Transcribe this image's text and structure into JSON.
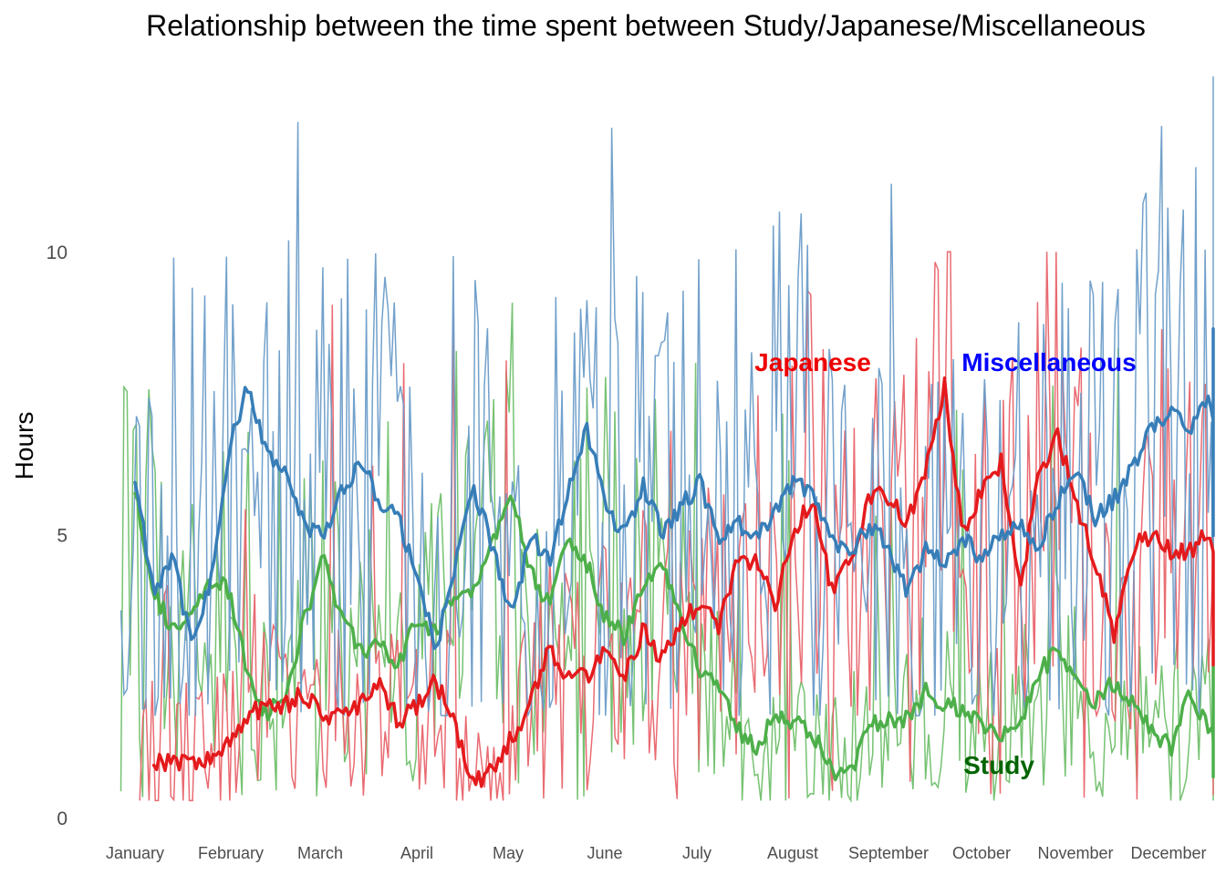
{
  "chart_data": {
    "type": "line",
    "title": "Relationship between the time spent between Study/Japanese/Miscellaneous",
    "ylabel": "Hours",
    "xlabel": "",
    "ylim": [
      0,
      13.0
    ],
    "yticks": [
      0,
      5,
      10
    ],
    "xticks": [
      "January",
      "February",
      "March",
      "April",
      "May",
      "June",
      "July",
      "August",
      "September",
      "October",
      "November",
      "December"
    ],
    "grid": false,
    "legend": "direct labels on plot",
    "series": [
      {
        "name": "Miscellaneous",
        "raw_color": "#6a9cc8",
        "smooth_color": "#377eb8",
        "label_color": "#0000ff",
        "raw_range": [
          1.8,
          13.1
        ],
        "smooth": [
          {
            "month": 1.0,
            "value": 6.0
          },
          {
            "month": 1.2,
            "value": 4.0
          },
          {
            "month": 1.4,
            "value": 4.7
          },
          {
            "month": 1.6,
            "value": 3.0
          },
          {
            "month": 1.8,
            "value": 4.2
          },
          {
            "month": 2.0,
            "value": 6.5
          },
          {
            "month": 2.2,
            "value": 7.6
          },
          {
            "month": 2.4,
            "value": 6.5
          },
          {
            "month": 2.6,
            "value": 6.0
          },
          {
            "month": 2.8,
            "value": 5.2
          },
          {
            "month": 3.0,
            "value": 4.9
          },
          {
            "month": 3.2,
            "value": 5.8
          },
          {
            "month": 3.4,
            "value": 6.3
          },
          {
            "month": 3.6,
            "value": 5.6
          },
          {
            "month": 3.8,
            "value": 5.3
          },
          {
            "month": 4.0,
            "value": 4.2
          },
          {
            "month": 4.2,
            "value": 3.0
          },
          {
            "month": 4.4,
            "value": 4.5
          },
          {
            "month": 4.6,
            "value": 5.8
          },
          {
            "month": 4.8,
            "value": 4.8
          },
          {
            "month": 5.0,
            "value": 3.5
          },
          {
            "month": 5.2,
            "value": 5.0
          },
          {
            "month": 5.4,
            "value": 4.5
          },
          {
            "month": 5.6,
            "value": 5.8
          },
          {
            "month": 5.8,
            "value": 6.9
          },
          {
            "month": 6.0,
            "value": 5.5
          },
          {
            "month": 6.2,
            "value": 5.0
          },
          {
            "month": 6.4,
            "value": 5.9
          },
          {
            "month": 6.6,
            "value": 5.0
          },
          {
            "month": 6.8,
            "value": 5.5
          },
          {
            "month": 7.0,
            "value": 5.9
          },
          {
            "month": 7.2,
            "value": 5.0
          },
          {
            "month": 7.4,
            "value": 5.2
          },
          {
            "month": 7.6,
            "value": 4.9
          },
          {
            "month": 7.8,
            "value": 5.4
          },
          {
            "month": 8.0,
            "value": 6.0
          },
          {
            "month": 8.2,
            "value": 5.7
          },
          {
            "month": 8.4,
            "value": 5.0
          },
          {
            "month": 8.6,
            "value": 4.6
          },
          {
            "month": 8.8,
            "value": 5.2
          },
          {
            "month": 9.0,
            "value": 4.8
          },
          {
            "month": 9.2,
            "value": 4.0
          },
          {
            "month": 9.4,
            "value": 4.7
          },
          {
            "month": 9.6,
            "value": 4.5
          },
          {
            "month": 9.8,
            "value": 4.9
          },
          {
            "month": 10.0,
            "value": 4.6
          },
          {
            "month": 10.2,
            "value": 5.0
          },
          {
            "month": 10.4,
            "value": 5.2
          },
          {
            "month": 10.6,
            "value": 4.8
          },
          {
            "month": 10.8,
            "value": 5.6
          },
          {
            "month": 11.0,
            "value": 6.1
          },
          {
            "month": 11.2,
            "value": 5.3
          },
          {
            "month": 11.4,
            "value": 5.6
          },
          {
            "month": 11.6,
            "value": 6.2
          },
          {
            "month": 11.8,
            "value": 6.9
          },
          {
            "month": 12.0,
            "value": 7.2
          },
          {
            "month": 12.2,
            "value": 6.9
          },
          {
            "month": 12.4,
            "value": 7.3
          },
          {
            "month": 12.6,
            "value": 6.3
          },
          {
            "month": 12.8,
            "value": 5.8
          },
          {
            "month": 13.0,
            "value": 5.4
          },
          {
            "month": 13.2,
            "value": 5.6
          },
          {
            "month": 13.4,
            "value": 5.3
          },
          {
            "month": 13.6,
            "value": 5.6
          },
          {
            "month": 13.8,
            "value": 5.6
          },
          {
            "month": 14.0,
            "value": 5.0
          },
          {
            "month": 14.2,
            "value": 5.5
          },
          {
            "month": 14.4,
            "value": 7.0
          },
          {
            "month": 14.6,
            "value": 8.8
          },
          {
            "month": 14.8,
            "value": 7.7
          },
          {
            "month": 15.0,
            "value": 7.9
          },
          {
            "month": 15.1,
            "value": 7.0
          }
        ]
      },
      {
        "name": "Japanese",
        "raw_color": "#e8636a",
        "smooth_color": "#e41a1c",
        "label_color": "#ee0000",
        "raw_range": [
          0.3,
          10.0
        ],
        "smooth": [
          {
            "month": 1.2,
            "value": 1.0
          },
          {
            "month": 1.5,
            "value": 1.0
          },
          {
            "month": 1.8,
            "value": 1.0
          },
          {
            "month": 2.0,
            "value": 1.3
          },
          {
            "month": 2.2,
            "value": 1.8
          },
          {
            "month": 2.4,
            "value": 2.0
          },
          {
            "month": 2.6,
            "value": 2.0
          },
          {
            "month": 2.8,
            "value": 2.2
          },
          {
            "month": 3.0,
            "value": 1.8
          },
          {
            "month": 3.2,
            "value": 1.8
          },
          {
            "month": 3.4,
            "value": 2.0
          },
          {
            "month": 3.6,
            "value": 2.3
          },
          {
            "month": 3.8,
            "value": 1.7
          },
          {
            "month": 4.0,
            "value": 2.0
          },
          {
            "month": 4.2,
            "value": 2.4
          },
          {
            "month": 4.4,
            "value": 1.6
          },
          {
            "month": 4.6,
            "value": 0.6
          },
          {
            "month": 4.8,
            "value": 0.8
          },
          {
            "month": 5.0,
            "value": 1.4
          },
          {
            "month": 5.2,
            "value": 2.0
          },
          {
            "month": 5.4,
            "value": 3.0
          },
          {
            "month": 5.6,
            "value": 2.5
          },
          {
            "month": 5.8,
            "value": 2.5
          },
          {
            "month": 6.0,
            "value": 3.0
          },
          {
            "month": 6.2,
            "value": 2.5
          },
          {
            "month": 6.4,
            "value": 3.3
          },
          {
            "month": 6.6,
            "value": 2.8
          },
          {
            "month": 6.8,
            "value": 3.4
          },
          {
            "month": 7.0,
            "value": 3.8
          },
          {
            "month": 7.2,
            "value": 3.4
          },
          {
            "month": 7.4,
            "value": 4.5
          },
          {
            "month": 7.6,
            "value": 4.5
          },
          {
            "month": 7.8,
            "value": 3.8
          },
          {
            "month": 8.0,
            "value": 5.0
          },
          {
            "month": 8.2,
            "value": 5.7
          },
          {
            "month": 8.4,
            "value": 4.0
          },
          {
            "month": 8.6,
            "value": 4.5
          },
          {
            "month": 8.8,
            "value": 5.7
          },
          {
            "month": 9.0,
            "value": 5.7
          },
          {
            "month": 9.2,
            "value": 5.2
          },
          {
            "month": 9.4,
            "value": 6.2
          },
          {
            "month": 9.6,
            "value": 7.6
          },
          {
            "month": 9.8,
            "value": 5.0
          },
          {
            "month": 10.0,
            "value": 5.8
          },
          {
            "month": 10.2,
            "value": 6.3
          },
          {
            "month": 10.4,
            "value": 4.0
          },
          {
            "month": 10.6,
            "value": 6.0
          },
          {
            "month": 10.8,
            "value": 6.8
          },
          {
            "month": 11.0,
            "value": 5.5
          },
          {
            "month": 11.2,
            "value": 4.5
          },
          {
            "month": 11.4,
            "value": 3.2
          },
          {
            "month": 11.6,
            "value": 4.8
          },
          {
            "month": 11.8,
            "value": 5.0
          },
          {
            "month": 12.0,
            "value": 4.7
          },
          {
            "month": 12.2,
            "value": 4.7
          },
          {
            "month": 12.4,
            "value": 5.0
          },
          {
            "month": 12.6,
            "value": 4.0
          },
          {
            "month": 12.8,
            "value": 3.2
          },
          {
            "month": 13.0,
            "value": 4.0
          },
          {
            "month": 13.2,
            "value": 3.2
          },
          {
            "month": 13.4,
            "value": 4.2
          },
          {
            "month": 13.6,
            "value": 3.8
          },
          {
            "month": 13.8,
            "value": 3.0
          },
          {
            "month": 14.0,
            "value": 4.5
          },
          {
            "month": 14.2,
            "value": 3.0
          },
          {
            "month": 14.4,
            "value": 4.5
          },
          {
            "month": 14.6,
            "value": 2.6
          },
          {
            "month": 14.8,
            "value": 3.3
          },
          {
            "month": 15.0,
            "value": 3.2
          },
          {
            "month": 15.1,
            "value": 2.8
          }
        ]
      },
      {
        "name": "Study",
        "raw_color": "#6fbf6a",
        "smooth_color": "#4daf4a",
        "label_color": "#006400",
        "raw_range": [
          0.3,
          9.1
        ],
        "smooth": [
          {
            "month": 1.0,
            "value": 5.8
          },
          {
            "month": 1.2,
            "value": 4.0
          },
          {
            "month": 1.4,
            "value": 3.3
          },
          {
            "month": 1.6,
            "value": 3.5
          },
          {
            "month": 1.8,
            "value": 4.2
          },
          {
            "month": 2.0,
            "value": 4.0
          },
          {
            "month": 2.2,
            "value": 2.5
          },
          {
            "month": 2.4,
            "value": 1.8
          },
          {
            "month": 2.6,
            "value": 2.2
          },
          {
            "month": 2.8,
            "value": 3.5
          },
          {
            "month": 3.0,
            "value": 4.6
          },
          {
            "month": 3.2,
            "value": 3.5
          },
          {
            "month": 3.4,
            "value": 3.0
          },
          {
            "month": 3.6,
            "value": 3.0
          },
          {
            "month": 3.8,
            "value": 2.7
          },
          {
            "month": 4.0,
            "value": 3.5
          },
          {
            "month": 4.2,
            "value": 3.3
          },
          {
            "month": 4.4,
            "value": 4.0
          },
          {
            "month": 4.6,
            "value": 4.0
          },
          {
            "month": 4.8,
            "value": 4.8
          },
          {
            "month": 5.0,
            "value": 5.8
          },
          {
            "month": 5.2,
            "value": 4.3
          },
          {
            "month": 5.4,
            "value": 3.8
          },
          {
            "month": 5.6,
            "value": 5.0
          },
          {
            "month": 5.8,
            "value": 4.5
          },
          {
            "month": 6.0,
            "value": 3.5
          },
          {
            "month": 6.2,
            "value": 3.2
          },
          {
            "month": 6.4,
            "value": 4.2
          },
          {
            "month": 6.6,
            "value": 4.5
          },
          {
            "month": 6.8,
            "value": 3.5
          },
          {
            "month": 7.0,
            "value": 2.6
          },
          {
            "month": 7.2,
            "value": 2.4
          },
          {
            "month": 7.4,
            "value": 1.6
          },
          {
            "month": 7.6,
            "value": 1.2
          },
          {
            "month": 7.8,
            "value": 1.8
          },
          {
            "month": 8.0,
            "value": 1.7
          },
          {
            "month": 8.2,
            "value": 1.5
          },
          {
            "month": 8.4,
            "value": 0.8
          },
          {
            "month": 8.6,
            "value": 0.8
          },
          {
            "month": 8.8,
            "value": 1.6
          },
          {
            "month": 9.0,
            "value": 1.8
          },
          {
            "month": 9.2,
            "value": 1.7
          },
          {
            "month": 9.4,
            "value": 2.2
          },
          {
            "month": 9.6,
            "value": 2.0
          },
          {
            "month": 9.8,
            "value": 1.9
          },
          {
            "month": 10.0,
            "value": 1.7
          },
          {
            "month": 10.2,
            "value": 1.4
          },
          {
            "month": 10.4,
            "value": 1.6
          },
          {
            "month": 10.6,
            "value": 2.6
          },
          {
            "month": 10.8,
            "value": 2.9
          },
          {
            "month": 11.0,
            "value": 2.3
          },
          {
            "month": 11.2,
            "value": 2.0
          },
          {
            "month": 11.4,
            "value": 2.4
          },
          {
            "month": 11.6,
            "value": 2.0
          },
          {
            "month": 11.8,
            "value": 1.6
          },
          {
            "month": 12.0,
            "value": 1.2
          },
          {
            "month": 12.2,
            "value": 2.3
          },
          {
            "month": 12.4,
            "value": 1.6
          },
          {
            "month": 12.6,
            "value": 1.4
          },
          {
            "month": 12.8,
            "value": 1.6
          },
          {
            "month": 13.0,
            "value": 0.9
          },
          {
            "month": 13.2,
            "value": 1.2
          },
          {
            "month": 13.4,
            "value": 1.2
          },
          {
            "month": 13.6,
            "value": 1.3
          },
          {
            "month": 13.8,
            "value": 1.2
          },
          {
            "month": 14.0,
            "value": 0.8
          },
          {
            "month": 14.2,
            "value": 1.0
          },
          {
            "month": 14.4,
            "value": 1.0
          },
          {
            "month": 14.6,
            "value": 1.2
          },
          {
            "month": 14.8,
            "value": 1.3
          },
          {
            "month": 15.0,
            "value": 1.4
          },
          {
            "month": 15.1,
            "value": 2.5
          }
        ]
      }
    ]
  }
}
